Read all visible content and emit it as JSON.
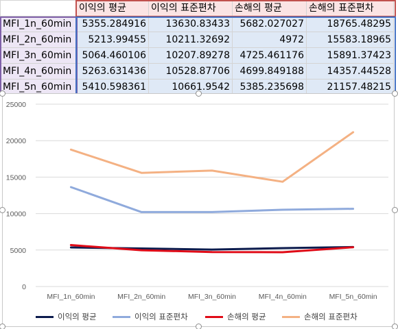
{
  "sheet": {
    "headers": [
      "이익의 평균",
      "이익의 표준편차",
      "손해의 평균",
      "손해의 표준편차"
    ],
    "rows": [
      {
        "label": "MFI_1n_60min",
        "values": [
          "5355.284916",
          "13630.83433",
          "5682.027027",
          "18765.48295"
        ]
      },
      {
        "label": "MFI_2n_60min",
        "values": [
          "5213.99455",
          "10211.32692",
          "4972",
          "15583.18965"
        ]
      },
      {
        "label": "MFI_3n_60min",
        "values": [
          "5064.460106",
          "10207.89278",
          "4725.461176",
          "15891.37423"
        ]
      },
      {
        "label": "MFI_4n_60min",
        "values": [
          "5263.631436",
          "10528.87706",
          "4699.849188",
          "14357.44528"
        ]
      },
      {
        "label": "MFI_5n_60min",
        "values": [
          "5410.598361",
          "10661.9542",
          "5385.235698",
          "21157.48215"
        ]
      }
    ]
  },
  "chart_data": {
    "type": "line",
    "title": "",
    "xlabel": "",
    "ylabel": "",
    "categories": [
      "MFI_1n_60min",
      "MFI_2n_60min",
      "MFI_3n_60min",
      "MFI_4n_60min",
      "MFI_5n_60min"
    ],
    "ylim": [
      0,
      25000
    ],
    "yticks": [
      "0",
      "5000",
      "10000",
      "15000",
      "20000",
      "25000"
    ],
    "grid": true,
    "legend_position": "bottom",
    "series": [
      {
        "name": "이익의 평균",
        "color": "#0c1b4d",
        "values": [
          5355.284916,
          5213.99455,
          5064.460106,
          5263.631436,
          5410.598361
        ]
      },
      {
        "name": "이익의 표준편차",
        "color": "#8faadc",
        "values": [
          13630.83433,
          10211.32692,
          10207.89278,
          10528.87706,
          10661.9542
        ]
      },
      {
        "name": "손해의 평균",
        "color": "#e00b17",
        "values": [
          5682.027027,
          4972,
          4725.461176,
          4699.849188,
          5385.235698
        ]
      },
      {
        "name": "손해의 표준편차",
        "color": "#f4b183",
        "values": [
          18765.48295,
          15583.18965,
          15891.37423,
          14357.44528,
          21157.48215
        ]
      }
    ]
  }
}
